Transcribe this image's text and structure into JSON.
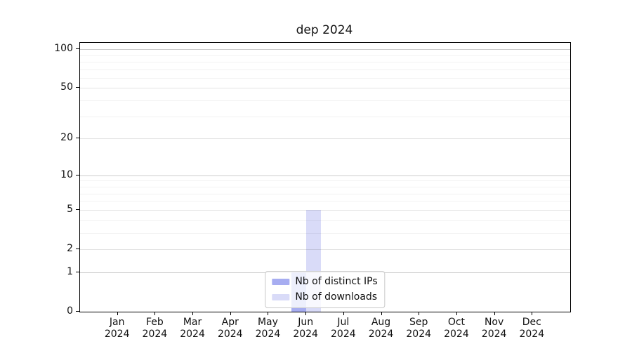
{
  "chart_data": {
    "type": "bar",
    "title": "dep 2024",
    "categories": [
      "Jan 2024",
      "Feb 2024",
      "Mar 2024",
      "Apr 2024",
      "May 2024",
      "Jun 2024",
      "Jul 2024",
      "Aug 2024",
      "Sep 2024",
      "Oct 2024",
      "Nov 2024",
      "Dec 2024"
    ],
    "series": [
      {
        "name": "Nb of distinct IPs",
        "color": "#a7adf1",
        "values": [
          0,
          0,
          0,
          0,
          0,
          1,
          0,
          0,
          0,
          0,
          0,
          0
        ]
      },
      {
        "name": "Nb of downloads",
        "color": "#d9dbf8",
        "values": [
          0,
          0,
          0,
          0,
          0,
          5,
          0,
          0,
          0,
          0,
          0,
          0
        ]
      }
    ],
    "yscale": "log1p",
    "ylim": [
      0,
      112
    ],
    "y_major_ticks": [
      0,
      1,
      2,
      5,
      10,
      20,
      50,
      100
    ],
    "y_decade_lines": [
      1,
      10,
      100
    ],
    "y_minor_gridlines": [
      3,
      4,
      6,
      7,
      8,
      9,
      30,
      40,
      60,
      70,
      80,
      90
    ],
    "grid": true,
    "legend_position": "lower center",
    "background_color": "#ffffff",
    "axis_color": "#000000"
  }
}
